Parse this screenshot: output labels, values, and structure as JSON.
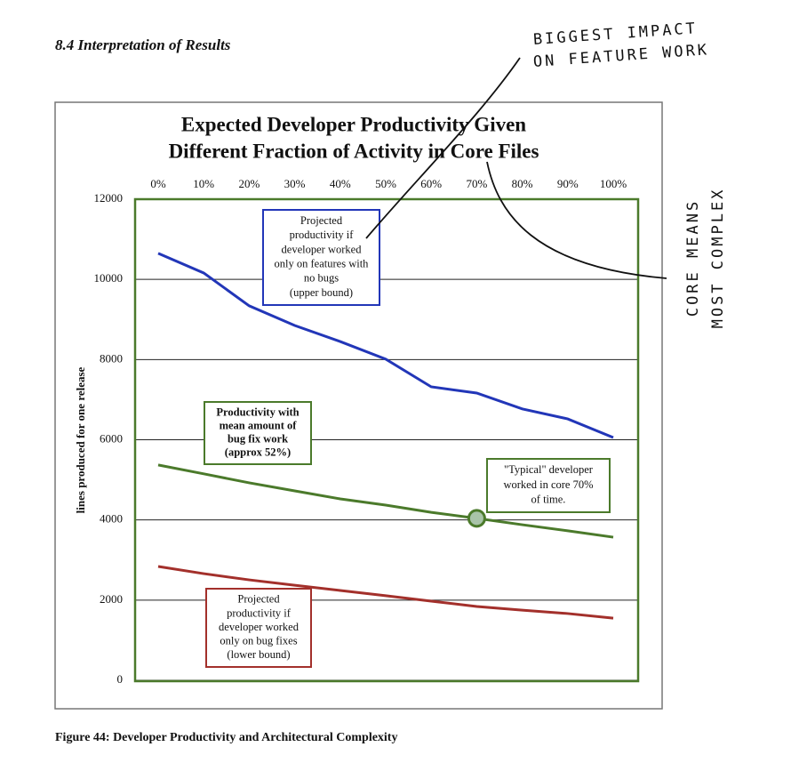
{
  "header": {
    "section": "8.4  Interpretation of Results"
  },
  "chart_data": {
    "type": "line",
    "title": [
      "Expected Developer Productivity Given",
      "Different Fraction of Activity in Core Files"
    ],
    "y_label": "lines produced for one release",
    "categories": [
      "0%",
      "10%",
      "20%",
      "30%",
      "40%",
      "50%",
      "60%",
      "70%",
      "80%",
      "90%",
      "100%"
    ],
    "series": [
      {
        "color": "#2236b8",
        "values": [
          10650,
          10160,
          9340,
          8850,
          8450,
          8010,
          7320,
          7165,
          6770,
          6520,
          6055
        ]
      },
      {
        "color": "#4b7a2b",
        "values": [
          5370,
          5150,
          4925,
          4725,
          4525,
          4370,
          4190,
          4040,
          3880,
          3730,
          3570
        ]
      },
      {
        "color": "#a3302b",
        "values": [
          2840,
          2660,
          2505,
          2370,
          2240,
          2110,
          1975,
          1840,
          1750,
          1665,
          1550
        ]
      }
    ],
    "ylim": [
      0,
      12000
    ],
    "yticks": [
      0,
      2000,
      4000,
      6000,
      8000,
      10000,
      12000
    ],
    "grid": true,
    "annotations": [
      {
        "color": "#2236b8",
        "lines": [
          "Projected",
          "productivity if",
          "developer worked",
          "only on features with",
          "no bugs",
          "(upper bound)"
        ]
      },
      {
        "color": "#4b7a2b",
        "lines": [
          "Productivity with",
          "mean amount of",
          "bug fix work",
          "(approx 52%)"
        ]
      },
      {
        "color": "#4b7a2b",
        "lines": [
          "\"Typical\" developer",
          "worked in core 70%",
          "of time."
        ]
      },
      {
        "color": "#a3302b",
        "lines": [
          "Projected",
          "productivity if",
          "developer worked",
          "only on bug fixes",
          "(lower bound)"
        ]
      }
    ]
  },
  "handwriting": {
    "top": [
      "BIGGEST IMPACT",
      "ON FEATURE WORK"
    ],
    "side": [
      "CORE MEANS",
      "MOST COMPLEX"
    ]
  },
  "caption": "Figure 44: Developer Productivity and Architectural Complexity"
}
